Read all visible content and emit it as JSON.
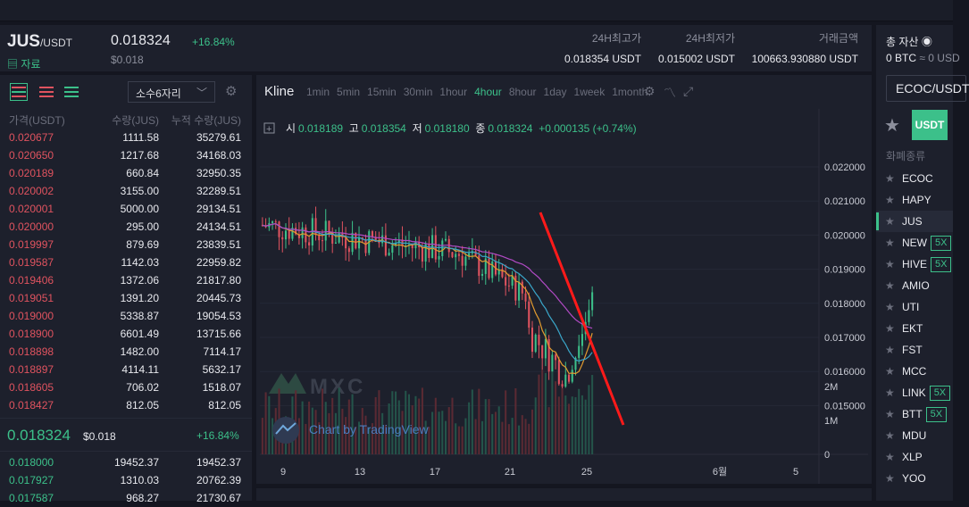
{
  "header": {
    "base": "JUS",
    "quote": "/USDT",
    "info_label": "자료",
    "price": "0.018324",
    "change": "+16.84%",
    "price_usd": "$0.018",
    "stats": [
      {
        "label": "24H최고가",
        "value": "0.018354 USDT"
      },
      {
        "label": "24H최저가",
        "value": "0.015002 USDT"
      },
      {
        "label": "거래금액",
        "value": "100663.930880 USDT"
      }
    ]
  },
  "orderbook": {
    "decimals": "소수6자리",
    "columns": [
      "가격(USDT)",
      "수량(JUS)",
      "누적 수량(JUS)"
    ],
    "asks": [
      [
        "0.020677",
        "1111.58",
        "35279.61"
      ],
      [
        "0.020650",
        "1217.68",
        "34168.03"
      ],
      [
        "0.020189",
        "660.84",
        "32950.35"
      ],
      [
        "0.020002",
        "3155.00",
        "32289.51"
      ],
      [
        "0.020001",
        "5000.00",
        "29134.51"
      ],
      [
        "0.020000",
        "295.00",
        "24134.51"
      ],
      [
        "0.019997",
        "879.69",
        "23839.51"
      ],
      [
        "0.019587",
        "1142.03",
        "22959.82"
      ],
      [
        "0.019406",
        "1372.06",
        "21817.80"
      ],
      [
        "0.019051",
        "1391.20",
        "20445.73"
      ],
      [
        "0.019000",
        "5338.87",
        "19054.53"
      ],
      [
        "0.018900",
        "6601.49",
        "13715.66"
      ],
      [
        "0.018898",
        "1482.00",
        "7114.17"
      ],
      [
        "0.018897",
        "4114.11",
        "5632.17"
      ],
      [
        "0.018605",
        "706.02",
        "1518.07"
      ],
      [
        "0.018427",
        "812.05",
        "812.05"
      ]
    ],
    "mid_price": "0.018324",
    "mid_usd": "$0.018",
    "mid_change": "+16.84%",
    "bids": [
      [
        "0.018000",
        "19452.37",
        "19452.37"
      ],
      [
        "0.017927",
        "1310.03",
        "20762.39"
      ],
      [
        "0.017587",
        "968.27",
        "21730.67"
      ]
    ]
  },
  "chart": {
    "title": "Kline",
    "intervals": [
      "1min",
      "5min",
      "15min",
      "30min",
      "1hour",
      "4hour",
      "8hour",
      "1day",
      "1week",
      "1month"
    ],
    "active_interval": "4hour",
    "ohlc": {
      "o_label": "시",
      "o": "0.018189",
      "h_label": "고",
      "h": "0.018354",
      "l_label": "저",
      "l": "0.018180",
      "c_label": "종",
      "c": "0.018324",
      "change": "+0.000135 (+0.74%)"
    },
    "price_ticks": [
      "0.022000",
      "0.021000",
      "0.020000",
      "0.019000",
      "0.018000",
      "0.017000",
      "0.016000",
      "0.015000"
    ],
    "volume_ticks": [
      "2M",
      "1M",
      "0"
    ],
    "x_ticks": [
      "9",
      "13",
      "17",
      "21",
      "25",
      "6월",
      "5"
    ],
    "watermark": "MXC",
    "attribution": "Chart by TradingView",
    "colors": {
      "up": "#3cc08a",
      "down": "#e0535f",
      "ma1": "#e39b2f",
      "ma2": "#3aa6c9",
      "ma3": "#b14ac4",
      "annotation": "#ff1a1a"
    }
  },
  "assets": {
    "title": "총 자산",
    "value": "0 BTC",
    "value_usd": "≈ 0 USD"
  },
  "market": {
    "search": "ECOC/USDT",
    "tab": "USDT",
    "category": "화폐종류",
    "coins": [
      {
        "name": "ECOC",
        "lev": ""
      },
      {
        "name": "HAPY",
        "lev": ""
      },
      {
        "name": "JUS",
        "lev": ""
      },
      {
        "name": "NEW",
        "lev": "5X"
      },
      {
        "name": "HIVE",
        "lev": "5X"
      },
      {
        "name": "AMIO",
        "lev": ""
      },
      {
        "name": "UTI",
        "lev": ""
      },
      {
        "name": "EKT",
        "lev": ""
      },
      {
        "name": "FST",
        "lev": ""
      },
      {
        "name": "MCC",
        "lev": ""
      },
      {
        "name": "LINK",
        "lev": "5X"
      },
      {
        "name": "BTT",
        "lev": "5X"
      },
      {
        "name": "MDU",
        "lev": ""
      },
      {
        "name": "XLP",
        "lev": ""
      },
      {
        "name": "YOO",
        "lev": ""
      }
    ],
    "active_coin": "JUS"
  }
}
